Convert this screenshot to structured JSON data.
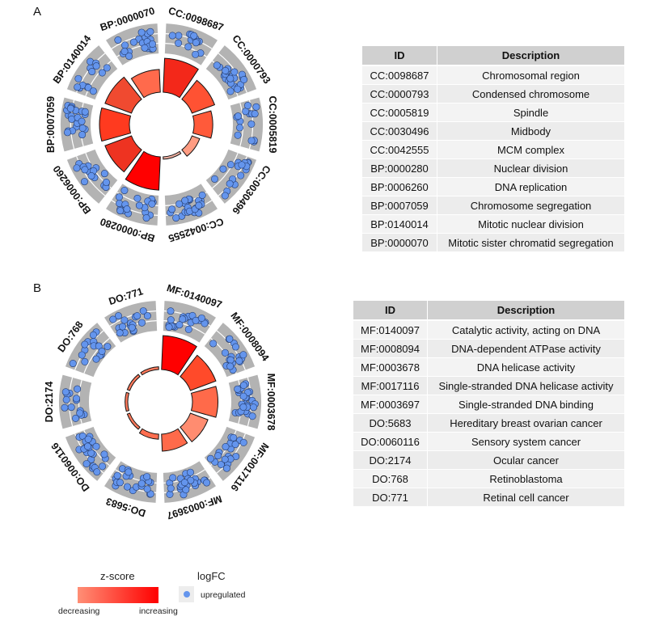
{
  "panels": [
    {
      "label": "A",
      "table": {
        "headers": [
          "ID",
          "Description"
        ],
        "rows": [
          [
            "CC:0098687",
            "Chromosomal region"
          ],
          [
            "CC:0000793",
            "Condensed chromosome"
          ],
          [
            "CC:0005819",
            "Spindle"
          ],
          [
            "CC:0030496",
            "Midbody"
          ],
          [
            "CC:0042555",
            "MCM complex"
          ],
          [
            "BP:0000280",
            "Nuclear division"
          ],
          [
            "BP:0006260",
            "DNA replication"
          ],
          [
            "BP:0007059",
            "Chromosome segregation"
          ],
          [
            "BP:0140014",
            "Mitotic nuclear division"
          ],
          [
            "BP:0000070",
            "Mitotic sister chromatid segregation"
          ]
        ]
      }
    },
    {
      "label": "B",
      "table": {
        "headers": [
          "ID",
          "Description"
        ],
        "rows": [
          [
            "MF:0140097",
            "Catalytic activity, acting on DNA"
          ],
          [
            "MF:0008094",
            "DNA-dependent ATPase activity"
          ],
          [
            "MF:0003678",
            "DNA helicase activity"
          ],
          [
            "MF:0017116",
            "Single-stranded DNA helicase activity"
          ],
          [
            "MF:0003697",
            "Single-stranded DNA binding"
          ],
          [
            "DO:5683",
            "Hereditary breast ovarian cancer"
          ],
          [
            "DO:0060116",
            "Sensory system cancer"
          ],
          [
            "DO:2174",
            "Ocular cancer"
          ],
          [
            "DO:768",
            "Retinoblastoma"
          ],
          [
            "DO:771",
            "Retinal cell cancer"
          ]
        ]
      }
    }
  ],
  "chart_data": [
    {
      "type": "circular-bar",
      "panel": "A",
      "terms": [
        "CC:0098687",
        "CC:0000793",
        "CC:0005819",
        "CC:0030496",
        "CC:0042555",
        "BP:0000280",
        "BP:0006260",
        "BP:0007059",
        "BP:0140014",
        "BP:0000070"
      ],
      "bar_relative_height": [
        1.0,
        0.71,
        0.55,
        0.24,
        0.07,
        0.98,
        0.83,
        0.88,
        0.83,
        0.67
      ],
      "bar_colors": [
        "#f3281a",
        "#ff5233",
        "#ff5a3a",
        "#ff9c82",
        "#f6b3a4",
        "#ff0000",
        "#ee3321",
        "#ff3a1f",
        "#f04a30",
        "#ff6a4c"
      ]
    },
    {
      "type": "circular-bar",
      "panel": "B",
      "terms": [
        "MF:0140097",
        "MF:0008094",
        "MF:0003678",
        "MF:0017116",
        "MF:0003697",
        "DO:5683",
        "DO:0060116",
        "DO:2174",
        "DO:768",
        "DO:771"
      ],
      "bar_relative_height": [
        1.0,
        0.8,
        0.75,
        0.55,
        0.5,
        0.15,
        0.08,
        0.08,
        0.08,
        0.08
      ],
      "bar_colors": [
        "#ff0000",
        "#ff4a2a",
        "#ff6a4a",
        "#ff8c70",
        "#ff6a4a",
        "#ff6e50",
        "#ff7a5c",
        "#ff7a5c",
        "#ff7a5c",
        "#ff7a5c"
      ]
    }
  ],
  "legend": {
    "zscore_title": "z-score",
    "zscore_low": "decreasing",
    "zscore_high": "increasing",
    "zscore_colors": [
      "#ff8f76",
      "#ff0000"
    ],
    "logfc_title": "logFC",
    "logfc_item": "upregulated",
    "logfc_color": "#6495ed"
  }
}
